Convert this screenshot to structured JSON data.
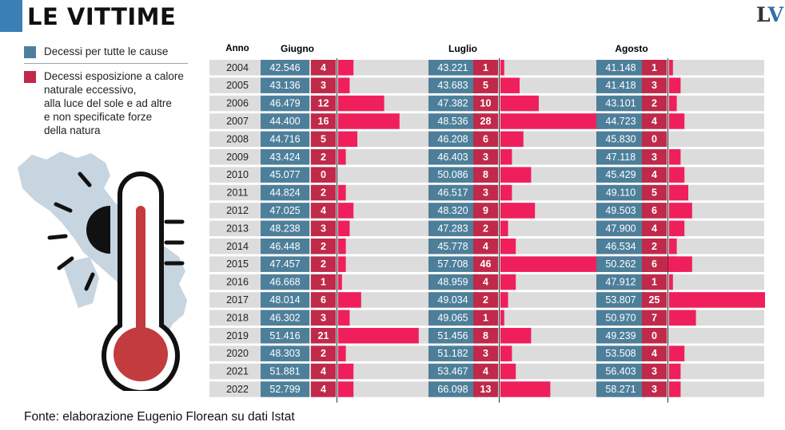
{
  "title": "LE VITTIME",
  "logo": {
    "l": "L",
    "v": "V"
  },
  "legend": {
    "total_label": "Decessi per tutte le cause",
    "heat_label": "Decessi esposizione a calore\nnaturale eccessivo,\nalla luce del sole e ad altre\ne non specificate forze\ndella natura"
  },
  "source": "Fonte: elaborazione Eugenio Florean su dati Istat",
  "colors": {
    "total": "#4d7f9a",
    "heat": "#c0294a",
    "bar": "#ef1f5c",
    "row_band": "#dcdcdc",
    "accent": "#3a7fb5",
    "thermo_red": "#c23b3f",
    "map_blue": "#c7d5e0"
  },
  "chart_data": {
    "type": "table",
    "year_header": "Anno",
    "months": [
      "Giugno",
      "Luglio",
      "Agosto"
    ],
    "years": [
      "2004",
      "2005",
      "2006",
      "2007",
      "2008",
      "2009",
      "2010",
      "2011",
      "2012",
      "2013",
      "2014",
      "2015",
      "2016",
      "2017",
      "2018",
      "2019",
      "2020",
      "2021",
      "2022"
    ],
    "total_deaths": {
      "Giugno": [
        "42.546",
        "43.136",
        "46.479",
        "44.400",
        "44.716",
        "43.424",
        "45.077",
        "44.824",
        "47.025",
        "48.238",
        "46.448",
        "47.457",
        "46.668",
        "48.014",
        "46.302",
        "51.416",
        "48.303",
        "51.881",
        "52.799"
      ],
      "Luglio": [
        "43.221",
        "43.683",
        "47.382",
        "48.536",
        "46.208",
        "46.403",
        "50.086",
        "46.517",
        "48.320",
        "47.283",
        "45.778",
        "57.708",
        "48.959",
        "49.034",
        "49.065",
        "51.456",
        "51.182",
        "53.467",
        "66.098"
      ],
      "Agosto": [
        "41.148",
        "41.418",
        "43.101",
        "44.723",
        "45.830",
        "47.118",
        "45.429",
        "49.110",
        "49.503",
        "47.900",
        "46.534",
        "50.262",
        "47.912",
        "53.807",
        "50.970",
        "49.239",
        "53.508",
        "56.403",
        "58.271"
      ]
    },
    "heat_deaths": {
      "Giugno": [
        4,
        3,
        12,
        16,
        5,
        2,
        0,
        2,
        4,
        3,
        2,
        2,
        1,
        6,
        3,
        21,
        2,
        4,
        4
      ],
      "Luglio": [
        1,
        5,
        10,
        28,
        6,
        3,
        8,
        3,
        9,
        2,
        4,
        46,
        4,
        2,
        1,
        8,
        3,
        4,
        13
      ],
      "Agosto": [
        1,
        3,
        2,
        4,
        0,
        3,
        4,
        5,
        6,
        4,
        2,
        6,
        1,
        25,
        7,
        0,
        4,
        3,
        3
      ]
    }
  }
}
